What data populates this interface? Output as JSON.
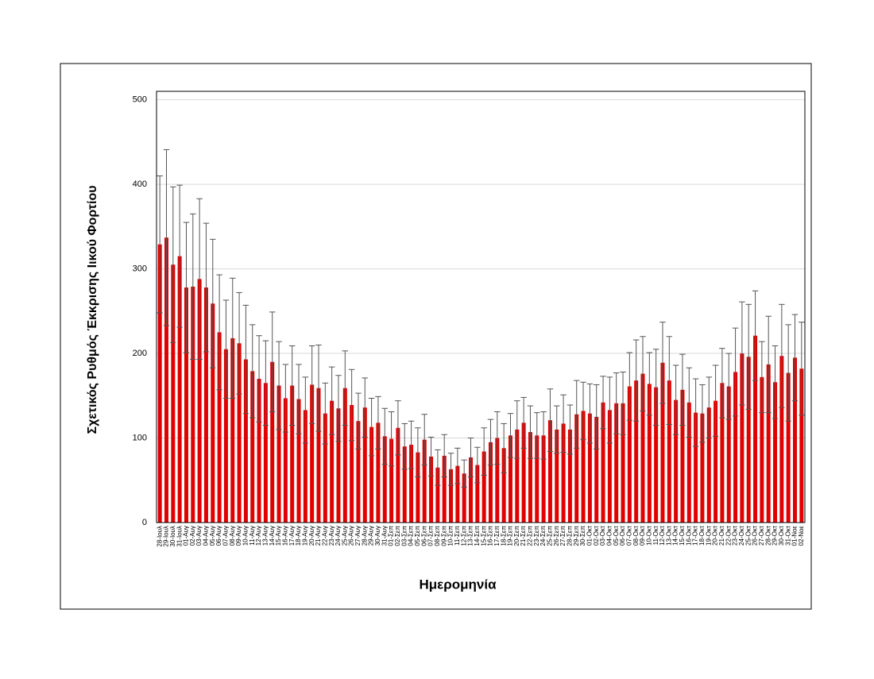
{
  "chart_data": {
    "type": "bar",
    "y_label": "Σχετικός Ρυθμός Έκκρισης Ιικού Φορτίου",
    "x_label": "Ημερομηνία",
    "color": "#e00000",
    "error_color": "#555555",
    "ylim": [
      0,
      510
    ],
    "yticks": [
      0,
      100,
      200,
      300,
      400,
      500
    ],
    "grid": true,
    "categories": [
      "28-Ιουλ",
      "29-Ιουλ",
      "30-Ιουλ",
      "31-Ιουλ",
      "01-Αυγ",
      "02-Αυγ",
      "03-Αυγ",
      "04-Αυγ",
      "05-Αυγ",
      "06-Αυγ",
      "07-Αυγ",
      "08-Αυγ",
      "09-Αυγ",
      "10-Αυγ",
      "11-Αυγ",
      "12-Αυγ",
      "13-Αυγ",
      "14-Αυγ",
      "15-Αυγ",
      "16-Αυγ",
      "17-Αυγ",
      "18-Αυγ",
      "19-Αυγ",
      "20-Αυγ",
      "21-Αυγ",
      "22-Αυγ",
      "23-Αυγ",
      "24-Αυγ",
      "25-Αυγ",
      "26-Αυγ",
      "27-Αυγ",
      "28-Αυγ",
      "29-Αυγ",
      "30-Αυγ",
      "31-Αυγ",
      "01-Σεπ",
      "02-Σεπ",
      "03-Σεπ",
      "04-Σεπ",
      "05-Σεπ",
      "06-Σεπ",
      "07-Σεπ",
      "08-Σεπ",
      "09-Σεπ",
      "10-Σεπ",
      "11-Σεπ",
      "12-Σεπ",
      "13-Σεπ",
      "14-Σεπ",
      "15-Σεπ",
      "16-Σεπ",
      "17-Σεπ",
      "18-Σεπ",
      "19-Σεπ",
      "20-Σεπ",
      "21-Σεπ",
      "22-Σεπ",
      "23-Σεπ",
      "24-Σεπ",
      "25-Σεπ",
      "26-Σεπ",
      "27-Σεπ",
      "28-Σεπ",
      "29-Σεπ",
      "30-Σεπ",
      "01-Οκτ",
      "02-Οκτ",
      "03-Οκτ",
      "04-Οκτ",
      "05-Οκτ",
      "06-Οκτ",
      "07-Οκτ",
      "08-Οκτ",
      "09-Οκτ",
      "10-Οκτ",
      "11-Οκτ",
      "12-Οκτ",
      "13-Οκτ",
      "14-Οκτ",
      "15-Οκτ",
      "16-Οκτ",
      "17-Οκτ",
      "18-Οκτ",
      "19-Οκτ",
      "20-Οκτ",
      "21-Οκτ",
      "22-Οκτ",
      "23-Οκτ",
      "24-Οκτ",
      "25-Οκτ",
      "26-Οκτ",
      "27-Οκτ",
      "28-Οκτ",
      "29-Οκτ",
      "30-Οκτ",
      "31-Οκτ",
      "01-Νοε",
      "02-Νοε"
    ],
    "values": [
      329,
      337,
      305,
      315,
      278,
      279,
      288,
      278,
      259,
      225,
      205,
      218,
      212,
      193,
      179,
      170,
      165,
      190,
      162,
      147,
      162,
      146,
      133,
      163,
      159,
      129,
      144,
      135,
      159,
      139,
      120,
      136,
      113,
      118,
      102,
      99,
      112,
      90,
      92,
      83,
      98,
      78,
      65,
      79,
      63,
      67,
      58,
      77,
      68,
      84,
      95,
      100,
      88,
      103,
      110,
      118,
      107,
      103,
      103,
      121,
      110,
      117,
      110,
      128,
      132,
      129,
      125,
      142,
      133,
      141,
      141,
      161,
      168,
      176,
      164,
      160,
      189,
      168,
      145,
      157,
      142,
      130,
      129,
      136,
      144,
      165,
      161,
      178,
      200,
      196,
      221,
      172,
      187,
      166,
      197,
      177,
      195,
      182
    ],
    "errors": [
      81,
      104,
      92,
      84,
      77,
      86,
      95,
      76,
      76,
      68,
      58,
      71,
      60,
      64,
      55,
      51,
      50,
      59,
      52,
      40,
      47,
      41,
      39,
      46,
      51,
      36,
      40,
      39,
      44,
      42,
      33,
      35,
      34,
      31,
      33,
      32,
      32,
      27,
      28,
      29,
      30,
      23,
      21,
      25,
      19,
      21,
      16,
      23,
      21,
      28,
      27,
      31,
      29,
      26,
      34,
      30,
      31,
      27,
      28,
      37,
      28,
      34,
      29,
      40,
      34,
      35,
      38,
      31,
      39,
      36,
      37,
      40,
      48,
      44,
      37,
      45,
      48,
      52,
      41,
      42,
      41,
      40,
      34,
      36,
      42,
      41,
      39,
      52,
      61,
      62,
      53,
      42,
      57,
      43,
      61,
      57,
      51,
      55
    ]
  }
}
